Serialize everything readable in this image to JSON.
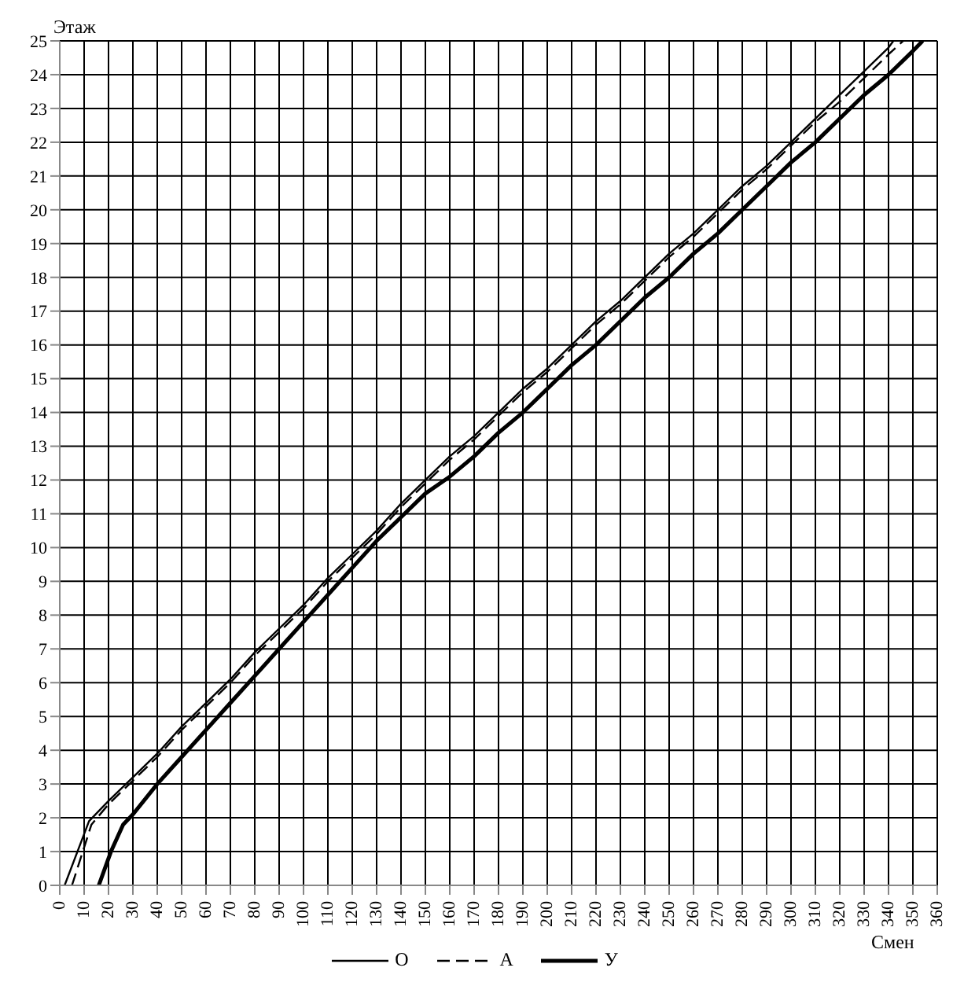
{
  "chart_data": {
    "type": "line",
    "xlabel": "Смен",
    "ylabel": "Этаж",
    "xlim": [
      0,
      360
    ],
    "xticks": [
      0,
      10,
      20,
      30,
      40,
      50,
      60,
      70,
      80,
      90,
      100,
      110,
      120,
      130,
      140,
      150,
      160,
      170,
      180,
      190,
      200,
      210,
      220,
      230,
      240,
      250,
      260,
      270,
      280,
      290,
      300,
      310,
      320,
      330,
      340,
      350,
      360
    ],
    "ylim": [
      0,
      25
    ],
    "yticks": [
      0,
      1,
      2,
      3,
      4,
      5,
      6,
      7,
      8,
      9,
      10,
      11,
      12,
      13,
      14,
      15,
      16,
      17,
      18,
      19,
      20,
      21,
      22,
      23,
      24,
      25
    ],
    "grid": true,
    "legend": "bottom",
    "marker": "none",
    "series": [
      {
        "name": "О",
        "color": "#000000",
        "line_style": "solid",
        "x": [
          2,
          12,
          20,
          30,
          40,
          50,
          60,
          70,
          80,
          90,
          100,
          110,
          120,
          130,
          140,
          150,
          160,
          170,
          180,
          190,
          200,
          210,
          220,
          230,
          240,
          250,
          260,
          270,
          280,
          290,
          300,
          310,
          320,
          330,
          340,
          342
        ],
        "values": [
          0,
          1.9,
          2.5,
          3.2,
          3.9,
          4.7,
          5.4,
          6.1,
          6.9,
          7.6,
          8.3,
          9.1,
          9.8,
          10.5,
          11.3,
          12,
          12.7,
          13.3,
          14,
          14.7,
          15.3,
          16,
          16.7,
          17.3,
          18,
          18.7,
          19.3,
          20,
          20.7,
          21.3,
          22,
          22.7,
          23.4,
          24.1,
          24.8,
          25
        ]
      },
      {
        "name": "А",
        "color": "#000000",
        "line_style": "dashed",
        "x": [
          5,
          13,
          20,
          30,
          40,
          50,
          60,
          70,
          80,
          90,
          100,
          110,
          120,
          130,
          140,
          150,
          160,
          170,
          180,
          190,
          200,
          210,
          220,
          230,
          240,
          250,
          260,
          270,
          280,
          290,
          300,
          310,
          320,
          330,
          340,
          346
        ],
        "values": [
          0,
          1.8,
          2.4,
          3.1,
          3.8,
          4.6,
          5.3,
          6,
          6.8,
          7.5,
          8.2,
          9,
          9.7,
          10.4,
          11.2,
          11.9,
          12.6,
          13.2,
          13.9,
          14.6,
          15.2,
          15.9,
          16.6,
          17.2,
          17.9,
          18.6,
          19.2,
          19.9,
          20.6,
          21.2,
          21.9,
          22.6,
          23.2,
          23.9,
          24.6,
          25
        ]
      },
      {
        "name": "У",
        "color": "#000000",
        "line_style": "solid",
        "x": [
          16,
          21,
          26,
          30,
          40,
          50,
          60,
          70,
          80,
          90,
          100,
          110,
          120,
          130,
          140,
          150,
          160,
          170,
          180,
          190,
          200,
          210,
          220,
          230,
          240,
          250,
          260,
          270,
          280,
          290,
          300,
          310,
          320,
          330,
          340,
          350,
          354
        ],
        "values": [
          0,
          1,
          1.8,
          2.1,
          3,
          3.8,
          4.6,
          5.4,
          6.2,
          7,
          7.8,
          8.6,
          9.4,
          10.2,
          10.9,
          11.6,
          12.1,
          12.7,
          13.4,
          14,
          14.7,
          15.4,
          16,
          16.7,
          17.4,
          18,
          18.7,
          19.3,
          20,
          20.7,
          21.4,
          22,
          22.7,
          23.4,
          24,
          24.7,
          25
        ]
      }
    ]
  }
}
